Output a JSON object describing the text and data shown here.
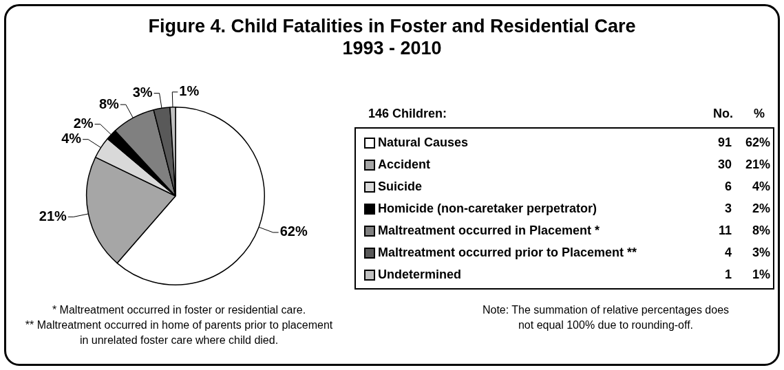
{
  "chart_data": {
    "type": "pie",
    "title": "Figure 4. Child Fatalities in Foster and Residential Care",
    "subtitle": "1993 - 2010",
    "legend_title": "146 Children:",
    "legend": "right",
    "categories": [
      "Natural Causes",
      "Accident",
      "Suicide",
      "Homicide (non-caretaker perpetrator)",
      "Maltreatment occurred in Placement *",
      "Maltreatment occurred prior to Placement **",
      "Undetermined"
    ],
    "values": [
      62,
      21,
      4,
      2,
      8,
      3,
      1
    ],
    "value_labels": [
      "62%",
      "21%",
      "4%",
      "2%",
      "8%",
      "3%",
      "1%"
    ],
    "colors": [
      "#ffffff",
      "#a6a6a6",
      "#d9d9d9",
      "#000000",
      "#808080",
      "#595959",
      "#c0c0c0"
    ],
    "annotations": [
      "No.",
      "%",
      "91",
      "30",
      "6",
      "3",
      "11",
      "4",
      "1",
      "* Maltreatment occurred in foster or residential care.",
      "** Maltreatment occurred in home of parents prior to placement in unrelated foster care where child died.",
      "Note: The summation of relative percentages does not equal 100% due to rounding-off."
    ]
  }
}
